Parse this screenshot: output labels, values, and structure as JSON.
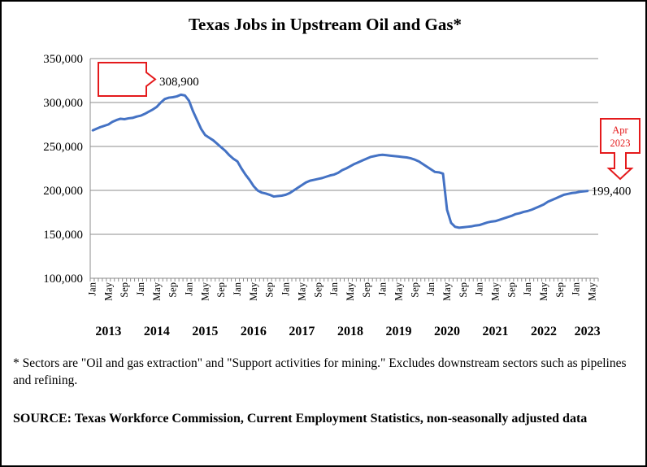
{
  "chart_data": {
    "type": "line",
    "title": "Texas Jobs in Upstream Oil and Gas*",
    "ylim": [
      100000,
      350000
    ],
    "y_ticks": [
      "100,000",
      "150,000",
      "200,000",
      "250,000",
      "300,000",
      "350,000"
    ],
    "y_tick_values": [
      100000,
      150000,
      200000,
      250000,
      300000,
      350000
    ],
    "grid": "horizontal",
    "month_tick_labels": [
      "Jan",
      "May",
      "Sep"
    ],
    "year_labels": [
      "2013",
      "2014",
      "2015",
      "2016",
      "2017",
      "2018",
      "2019",
      "2020",
      "2021",
      "2022",
      "2023"
    ],
    "series": [
      {
        "color": "#4472C4",
        "start": "2013-01",
        "end": "2023-04",
        "frequency": "monthly",
        "values": [
          268000,
          270000,
          272000,
          273500,
          275000,
          278000,
          280000,
          281500,
          281000,
          282000,
          282500,
          284000,
          285000,
          287000,
          289500,
          292000,
          295000,
          300000,
          304000,
          305500,
          306000,
          307000,
          308900,
          308000,
          302000,
          290000,
          280000,
          270000,
          263000,
          260000,
          257000,
          253000,
          249000,
          245000,
          240000,
          236000,
          233000,
          225000,
          218000,
          212000,
          205000,
          200000,
          197500,
          196500,
          195000,
          193000,
          193500,
          194000,
          195000,
          197000,
          200000,
          203000,
          206000,
          209000,
          211000,
          212000,
          213000,
          214000,
          215500,
          217000,
          218000,
          220000,
          223000,
          225000,
          227500,
          230000,
          232000,
          234000,
          236000,
          238000,
          239000,
          240000,
          240500,
          240000,
          239500,
          239000,
          238500,
          238000,
          237500,
          236500,
          235000,
          233000,
          230000,
          227000,
          224000,
          221000,
          220500,
          219000,
          178000,
          163000,
          158500,
          157500,
          158000,
          158500,
          159000,
          160000,
          160500,
          162000,
          163500,
          164500,
          165000,
          166500,
          168000,
          169500,
          171000,
          173000,
          174000,
          175500,
          176500,
          178000,
          180000,
          182000,
          184000,
          187000,
          189000,
          191000,
          193000,
          195000,
          196000,
          197000,
          197500,
          198500,
          199000,
          199400
        ]
      }
    ],
    "annotations": [
      {
        "text": "308,900",
        "x": "2014-11",
        "y": 308900
      },
      {
        "text": "199,400",
        "x": "2023-04",
        "y": 199400
      },
      {
        "text": "Apr",
        "x": "2023-04"
      },
      {
        "text": "2023",
        "x": "2023-04"
      }
    ]
  },
  "footnote": "* Sectors are \"Oil and gas extraction\" and \"Support activities for mining.\"  Excludes downstream sectors such as pipelines and refining.",
  "source": "SOURCE: Texas Workforce Commission, Current Employment Statistics, non-seasonally adjusted data",
  "colors": {
    "line": "#4472C4",
    "callout": "#E41A1C",
    "grid": "#8C8C8C"
  }
}
